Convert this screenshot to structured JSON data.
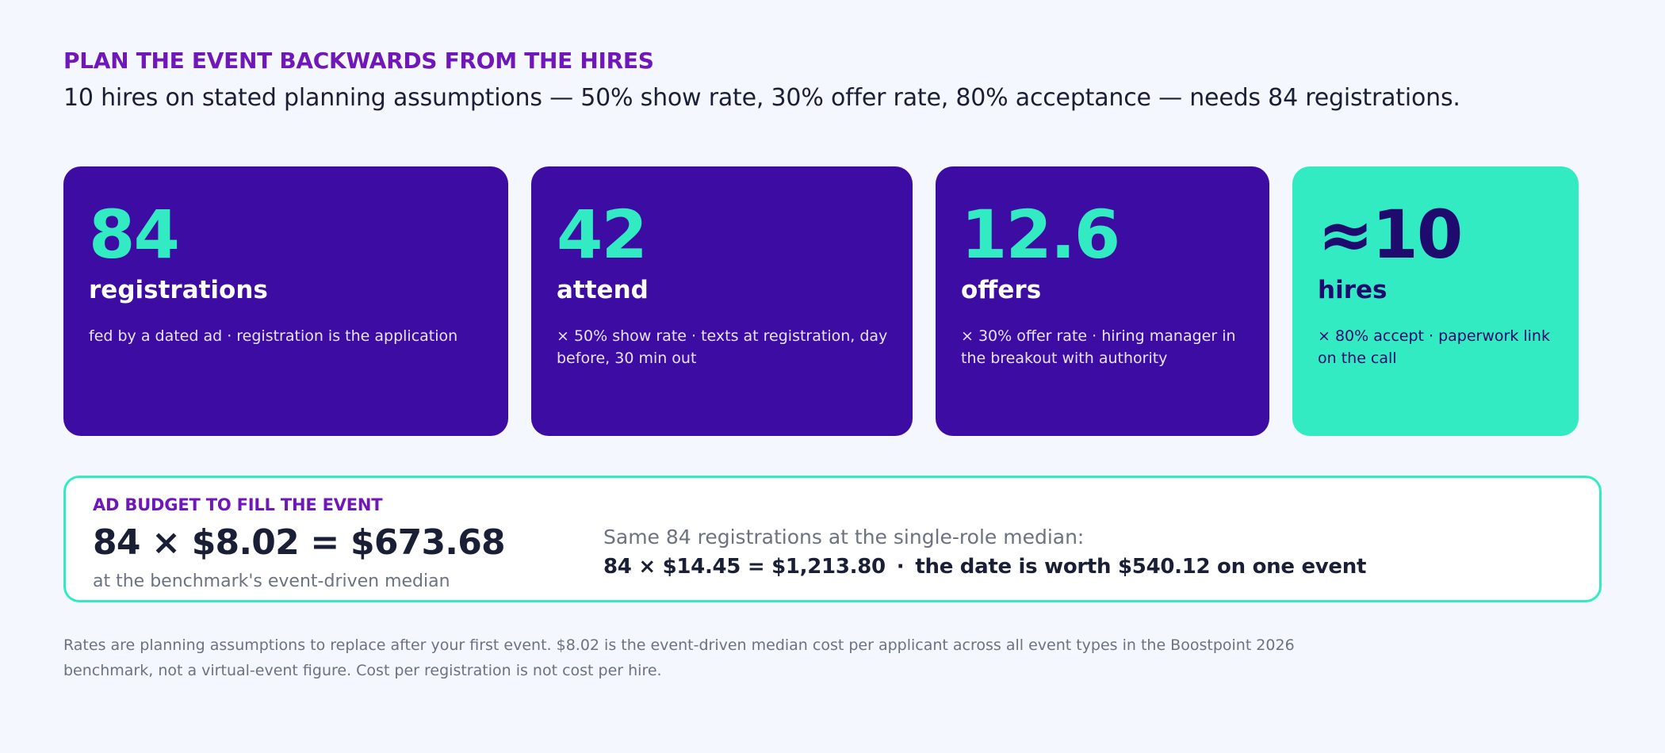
{
  "header": {
    "eyebrow": "PLAN THE EVENT BACKWARDS FROM THE HIRES",
    "headline": "10 hires on stated planning assumptions — 50% show rate, 30% offer rate, 80% acceptance — needs 84 registrations."
  },
  "funnel": [
    {
      "value": "84",
      "label": "registrations",
      "note": "fed by a dated ad · registration is the application"
    },
    {
      "value": "42",
      "label": "attend",
      "note": "× 50% show rate · texts at registration, day before, 30 min out"
    },
    {
      "value": "12.6",
      "label": "offers",
      "note": "× 30% offer rate · hiring manager in the breakout with authority"
    },
    {
      "value": "≈10",
      "label": "hires",
      "note": "× 80% accept · paperwork link on the call"
    }
  ],
  "budget": {
    "kicker": "AD BUDGET TO FILL THE EVENT",
    "formula": "84 × $8.02 = $673.68",
    "sub": "at the benchmark's event-driven median",
    "comparison_head": "Same 84 registrations at the single-role median:",
    "comparison_formula": "84 × $14.45 = $1,213.80",
    "comparison_separator": "·",
    "comparison_conclusion": "the date is worth $540.12 on one event"
  },
  "footnote": "Rates are planning assumptions to replace after your first event. $8.02 is the event-driven median cost per applicant across all event types in the Boostpoint 2026 benchmark, not a virtual-event figure. Cost per registration is not cost per hire.",
  "colors": {
    "card_purple": "#3c0ca3",
    "accent_mint": "#33ebc2",
    "eyebrow_purple": "#6f17b8",
    "background": "#f4f7fd"
  }
}
